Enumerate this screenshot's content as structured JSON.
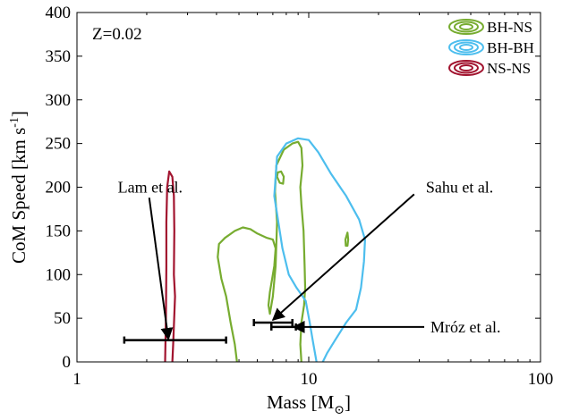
{
  "chart_data": {
    "type": "contour",
    "panel_label": "Z=0.02",
    "xlabel": "Mass [M",
    "xlabel_sub": "⊙",
    "xlabel_close": "]",
    "ylabel": "CoM Speed [km s",
    "ylabel_sup": "-1",
    "ylabel_close": "]",
    "x_scale": "log",
    "xlim": [
      1,
      100
    ],
    "ylim": [
      0,
      400
    ],
    "x_ticks": [
      1,
      10,
      100
    ],
    "x_tick_labels": [
      "1",
      "10",
      "100"
    ],
    "y_ticks": [
      0,
      50,
      100,
      150,
      200,
      250,
      300,
      350,
      400
    ],
    "y_tick_labels": [
      "0",
      "50",
      "100",
      "150",
      "200",
      "250",
      "300",
      "350",
      "400"
    ],
    "grid": false,
    "legend_position": "top-right",
    "series": [
      {
        "name": "BH-NS",
        "color": "#77ac30",
        "contours": [
          [
            [
              4.9,
              0
            ],
            [
              4.8,
              20
            ],
            [
              4.6,
              45
            ],
            [
              4.4,
              75
            ],
            [
              4.2,
              95
            ],
            [
              4.05,
              120
            ],
            [
              4.1,
              135
            ],
            [
              4.35,
              142
            ],
            [
              4.8,
              150
            ],
            [
              5.2,
              154
            ],
            [
              5.6,
              152
            ],
            [
              6.0,
              147
            ],
            [
              6.6,
              142
            ],
            [
              7.0,
              140
            ],
            [
              7.2,
              130
            ],
            [
              7.1,
              110
            ],
            [
              6.95,
              95
            ],
            [
              6.8,
              80
            ],
            [
              6.7,
              65
            ],
            [
              6.8,
              55
            ],
            [
              7.0,
              75
            ],
            [
              7.2,
              110
            ],
            [
              7.3,
              160
            ],
            [
              7.15,
              195
            ],
            [
              7.25,
              225
            ],
            [
              7.8,
              243
            ],
            [
              8.5,
              250
            ],
            [
              9.0,
              252
            ],
            [
              9.3,
              245
            ],
            [
              9.4,
              225
            ],
            [
              9.2,
              200
            ],
            [
              9.3,
              180
            ],
            [
              9.5,
              150
            ],
            [
              9.6,
              110
            ],
            [
              9.65,
              85
            ],
            [
              9.55,
              65
            ],
            [
              9.3,
              45
            ],
            [
              9.2,
              20
            ],
            [
              9.3,
              0
            ]
          ],
          [
            [
              7.35,
              217
            ],
            [
              7.6,
              218
            ],
            [
              7.8,
              212
            ],
            [
              7.75,
              204
            ],
            [
              7.5,
              205
            ],
            [
              7.3,
              212
            ],
            [
              7.35,
              217
            ]
          ],
          [
            [
              14.4,
              140
            ],
            [
              14.7,
              148
            ],
            [
              14.8,
              140
            ],
            [
              14.7,
              133
            ],
            [
              14.45,
              133
            ],
            [
              14.4,
              140
            ]
          ]
        ]
      },
      {
        "name": "BH-BH",
        "color": "#4dbeee",
        "contours": [
          [
            [
              10.8,
              0
            ],
            [
              10.4,
              25
            ],
            [
              10.1,
              45
            ],
            [
              9.7,
              70
            ],
            [
              8.85,
              85
            ],
            [
              8.2,
              100
            ],
            [
              7.7,
              130
            ],
            [
              7.1,
              190
            ],
            [
              7.3,
              235
            ],
            [
              8.0,
              250
            ],
            [
              9.0,
              256
            ],
            [
              10.0,
              254
            ],
            [
              11.0,
              240
            ],
            [
              12.5,
              215
            ],
            [
              14.5,
              190
            ],
            [
              16.5,
              163
            ],
            [
              17.5,
              140
            ],
            [
              17.3,
              115
            ],
            [
              16.8,
              85
            ],
            [
              16.0,
              60
            ],
            [
              14.5,
              45
            ],
            [
              13.0,
              25
            ],
            [
              12.0,
              10
            ],
            [
              11.5,
              0
            ]
          ]
        ]
      },
      {
        "name": "NS-NS",
        "color": "#a2142f",
        "contours": [
          [
            [
              2.4,
              0
            ],
            [
              2.42,
              50
            ],
            [
              2.43,
              110
            ],
            [
              2.43,
              160
            ],
            [
              2.45,
              200
            ],
            [
              2.5,
              218
            ],
            [
              2.58,
              212
            ],
            [
              2.62,
              190
            ],
            [
              2.63,
              150
            ],
            [
              2.62,
              100
            ],
            [
              2.65,
              75
            ],
            [
              2.6,
              20
            ],
            [
              2.58,
              0
            ]
          ]
        ]
      }
    ],
    "error_bars": [
      {
        "name": "Lam et al.",
        "y": 25,
        "x_low": 1.6,
        "x_high": 4.4
      },
      {
        "name": "Sahu et al.",
        "y": 45,
        "x_low": 5.8,
        "x_high": 8.5
      },
      {
        "name": "Mróz et al.",
        "y": 40,
        "x_low": 6.9,
        "x_high": 8.8
      }
    ],
    "annotations": [
      {
        "text": "Lam et al.",
        "text_x": 1.5,
        "text_y": 200,
        "arrow_from": [
          2.05,
          188
        ],
        "arrow_to": [
          2.48,
          26
        ]
      },
      {
        "text": "Sahu et al.",
        "text_x": 32,
        "text_y": 200,
        "arrow_from": [
          28.5,
          192
        ],
        "arrow_to": [
          7.0,
          48
        ]
      },
      {
        "text": "Mróz et al.",
        "text_x": 33.5,
        "text_y": 40,
        "arrow_from": [
          31.5,
          40
        ],
        "arrow_to": [
          8.6,
          40
        ]
      }
    ]
  }
}
